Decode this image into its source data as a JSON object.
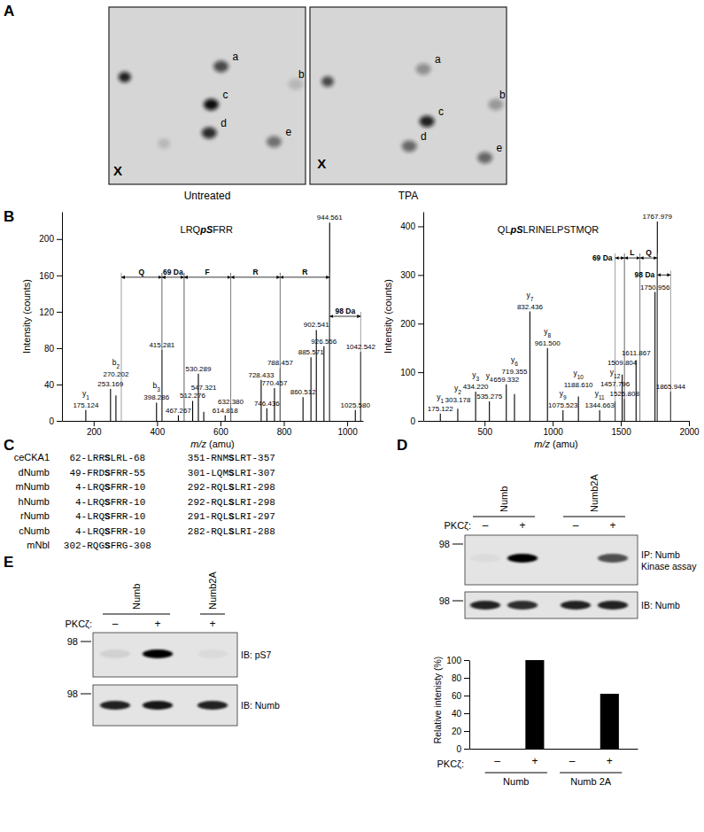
{
  "chart_data": [
    {
      "type": "spectrum",
      "title": "LRQpSFRR",
      "x_label": "m/z (amu)",
      "y_label": "Intensity (counts)",
      "color": "#000000",
      "xlim": [
        100,
        1050
      ],
      "xticks": [
        200,
        400,
        600,
        800,
        1000
      ],
      "ylim": [
        0,
        230
      ],
      "yticks": [
        0,
        40,
        80,
        120,
        160,
        200
      ],
      "x": [
        175.124,
        253.169,
        270.202,
        398.286,
        415.281,
        467.267,
        512.276,
        530.289,
        547.321,
        614.818,
        632.38,
        728.433,
        746.436,
        770.457,
        788.457,
        860.512,
        885.571,
        902.541,
        926.556,
        944.561,
        1025.58,
        1042.542
      ],
      "x_labels": [
        "175.124",
        "253.169",
        "270.202",
        "398.286",
        "415.281",
        "467.267",
        "512.276",
        "530.289",
        "547.321",
        "614.818",
        "632.380",
        "728.433",
        "746.436",
        "770.457",
        "788.457",
        "860.512",
        "885.571",
        "902.541",
        "926.556",
        "944.561",
        "1025.580",
        "1042.542"
      ],
      "ion_labels": [
        "y1",
        null,
        "b2",
        "b3",
        null,
        null,
        null,
        null,
        null,
        null,
        null,
        null,
        null,
        null,
        null,
        null,
        null,
        null,
        null,
        null,
        null,
        null
      ],
      "values": [
        12,
        35,
        28,
        20,
        78,
        6,
        22,
        52,
        10,
        6,
        16,
        45,
        14,
        36,
        58,
        26,
        70,
        100,
        82,
        218,
        12,
        76
      ],
      "annotations": [
        {
          "label": "Q",
          "from": 287.2,
          "to": 415.281,
          "y": 158
        },
        {
          "label": "69 Da",
          "from": 415.281,
          "to": 485.3,
          "y": 158
        },
        {
          "label": "F",
          "from": 485.3,
          "to": 632.38,
          "y": 158
        },
        {
          "label": "R",
          "from": 632.38,
          "to": 788.457,
          "y": 158
        },
        {
          "label": "R",
          "from": 788.457,
          "to": 944.561,
          "y": 158
        },
        {
          "label": "98 Da",
          "from": 944.561,
          "to": 1042.542,
          "y": 115
        }
      ]
    },
    {
      "type": "spectrum",
      "title": "QLpSLRINELPSTMQR",
      "x_label": "m/z (amu)",
      "y_label": "Intensity (counts)",
      "color": "#000000",
      "xlim": [
        50,
        2000
      ],
      "xticks": [
        500,
        1000,
        1500,
        2000
      ],
      "ylim": [
        0,
        430
      ],
      "yticks": [
        0,
        100,
        200,
        300,
        400
      ],
      "x": [
        175.122,
        303.178,
        434.22,
        535.275,
        659.332,
        719.355,
        832.436,
        961.5,
        1075.523,
        1188.61,
        1344.663,
        1457.796,
        1509.804,
        1526.808,
        1611.867,
        1750.956,
        1767.979,
        1865.944
      ],
      "x_labels": [
        "175.122",
        "303.178",
        "434.220",
        "535.275",
        "659.332",
        "719.355",
        "832.436",
        "961.500",
        "1075.523",
        "1188.610",
        "1344.663",
        "1457.796",
        "1509.804",
        "1526.808",
        "1611.867",
        "1750.956",
        "1767.979",
        "1865.944"
      ],
      "ion_labels": [
        "y1",
        "y2",
        "y3",
        "y4",
        null,
        "y6",
        "y7",
        "y8",
        "y9",
        "y10",
        "y11",
        "y12",
        null,
        null,
        null,
        null,
        null,
        null
      ],
      "values": [
        15,
        25,
        60,
        40,
        75,
        55,
        225,
        150,
        22,
        50,
        22,
        40,
        95,
        45,
        125,
        265,
        410,
        60
      ],
      "annotations": [
        {
          "label": "69 Da",
          "from": 1457.796,
          "to": 1526.808,
          "y": 335
        },
        {
          "label": "L",
          "from": 1526.808,
          "to": 1639.9,
          "y": 335
        },
        {
          "label": "Q",
          "from": 1639.9,
          "to": 1767.979,
          "y": 335
        },
        {
          "label": "98 Da",
          "from": 1767.979,
          "to": 1865.944,
          "y": 300
        }
      ]
    },
    {
      "type": "bar",
      "categories": [
        "–",
        "+",
        "–",
        "+"
      ],
      "values": [
        0,
        100,
        0,
        62
      ],
      "color": "#000000",
      "y_label": "Relative intenisty (%)",
      "x_label": "PKCζ:",
      "ylim": [
        0,
        100
      ],
      "yticks": [
        0,
        20,
        40,
        60,
        80,
        100
      ],
      "groups": [
        {
          "label": "Numb",
          "lanes": [
            0,
            1
          ]
        },
        {
          "label": "Numb 2A",
          "lanes": [
            2,
            3
          ]
        }
      ]
    }
  ],
  "figure": {
    "A": {
      "label": "A",
      "maps": [
        {
          "caption": "Untreated",
          "origin": {
            "text": "X",
            "x": 4.5,
            "y": 92.5
          },
          "streak": {
            "x": 8,
            "y_top": 2,
            "y_bottom": 46
          },
          "spots": [
            {
              "label": "a",
              "x": 57,
              "y": 33.5,
              "intensity": 0.7
            },
            {
              "label": "b",
              "x": 95,
              "y": 43.5,
              "intensity": 0.15
            },
            {
              "label": "c",
              "x": 52,
              "y": 55,
              "intensity": 1
            },
            {
              "label": "d",
              "x": 51,
              "y": 71,
              "intensity": 0.85
            },
            {
              "label": "e",
              "x": 84,
              "y": 76,
              "intensity": 0.5
            }
          ],
          "unlabeled_spots": [
            {
              "x": 8,
              "y": 39.5,
              "intensity": 0.9
            },
            {
              "x": 28,
              "y": 77,
              "intensity": 0.15
            }
          ]
        },
        {
          "caption": "TPA",
          "origin": {
            "text": "X",
            "x": 6,
            "y": 88.5
          },
          "streak": {
            "x": 9,
            "y_top": 2,
            "y_bottom": 48
          },
          "spots": [
            {
              "label": "a",
              "x": 57.7,
              "y": 35,
              "intensity": 0.35
            },
            {
              "label": "b",
              "x": 94.5,
              "y": 55,
              "intensity": 0.3
            },
            {
              "label": "c",
              "x": 59.5,
              "y": 64.5,
              "intensity": 0.9
            },
            {
              "label": "d",
              "x": 50.5,
              "y": 78.5,
              "intensity": 0.55
            },
            {
              "label": "e",
              "x": 89,
              "y": 85,
              "intensity": 0.55
            }
          ],
          "unlabeled_spots": [
            {
              "x": 9,
              "y": 42,
              "intensity": 0.7
            }
          ]
        }
      ]
    },
    "B": {
      "label": "B"
    },
    "C": {
      "label": "C",
      "rows": [
        {
          "name": "ceCKA1",
          "left": "62-LRRSLRL-68",
          "right": "351-RNMSLRT-357"
        },
        {
          "name": "dNumb",
          "left": "49-FRDSFRR-55",
          "right": "301-LQMSLRI-307"
        },
        {
          "name": "mNumb",
          "left": "4-LRQSFRR-10",
          "right": "292-RQLSLRI-298"
        },
        {
          "name": "hNumb",
          "left": "4-LRQSFRR-10",
          "right": "292-RQLSLRI-298"
        },
        {
          "name": "rNumb",
          "left": "4-LRQSFRR-10",
          "right": "291-RQLSLRI-297"
        },
        {
          "name": "cNumb",
          "left": "4-LRQSFRR-10",
          "right": "282-RQLSLRI-288"
        },
        {
          "name": "mNbl",
          "left": "302-RQGSFRG-308",
          "right": null
        }
      ]
    },
    "D": {
      "label": "D",
      "row_label": "PKCζ:",
      "treatment": [
        "–",
        "+",
        "–",
        "+"
      ],
      "groups": [
        {
          "label": "Numb",
          "lanes": [
            0,
            1
          ]
        },
        {
          "label": "Numb2A",
          "lanes": [
            2,
            3
          ]
        }
      ],
      "blots": [
        {
          "marker": "98",
          "label": [
            "IP: Numb",
            "Kinase assay"
          ],
          "bands": [
            0.03,
            1,
            0,
            0.65
          ]
        },
        {
          "marker": "98",
          "label": [
            "IB: Numb"
          ],
          "bands": [
            0.85,
            0.8,
            0.85,
            0.85
          ]
        }
      ]
    },
    "E": {
      "label": "E",
      "row_label": "PKCζ:",
      "treatment": [
        "–",
        "+",
        "+"
      ],
      "groups": [
        {
          "label": "Numb",
          "lanes": [
            0,
            1
          ]
        },
        {
          "label": "Numb2A",
          "lanes": [
            2
          ]
        }
      ],
      "blots": [
        {
          "marker": "98",
          "label": [
            "IB: pS7"
          ],
          "bands": [
            0.08,
            1,
            0.04
          ]
        },
        {
          "marker": "98",
          "label": [
            "IB: Numb"
          ],
          "bands": [
            0.85,
            0.9,
            0.85
          ]
        }
      ]
    }
  }
}
